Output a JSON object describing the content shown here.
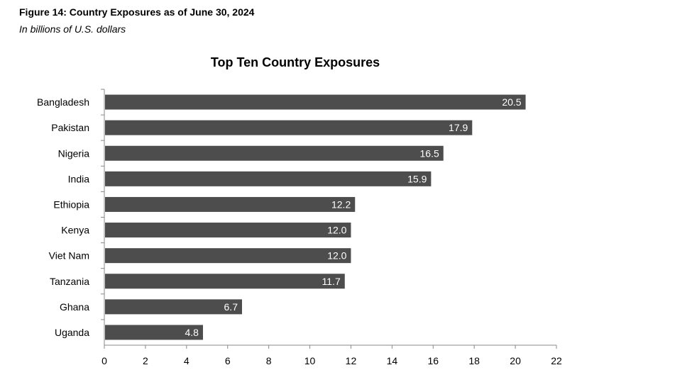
{
  "figure": {
    "title": "Figure 14: Country Exposures as of June 30, 2024",
    "subtitle": "In billions of U.S. dollars"
  },
  "chart_data": {
    "type": "bar",
    "orientation": "horizontal",
    "title": "Top Ten Country Exposures",
    "categories": [
      "Bangladesh",
      "Pakistan",
      "Nigeria",
      "India",
      "Ethiopia",
      "Kenya",
      "Viet Nam",
      "Tanzania",
      "Ghana",
      "Uganda"
    ],
    "values": [
      20.5,
      17.9,
      16.5,
      15.9,
      12.2,
      12.0,
      12.0,
      11.7,
      6.7,
      4.8
    ],
    "data_labels": [
      "20.5",
      "17.9",
      "16.5",
      "15.9",
      "12.2",
      "12.0",
      "12.0",
      "11.7",
      "6.7",
      "4.8"
    ],
    "xlabel": "",
    "ylabel": "",
    "xlim": [
      0,
      22
    ],
    "xticks": [
      0,
      2,
      4,
      6,
      8,
      10,
      12,
      14,
      16,
      18,
      20,
      22
    ],
    "grid": false,
    "bar_color": "#4d4d4d"
  }
}
